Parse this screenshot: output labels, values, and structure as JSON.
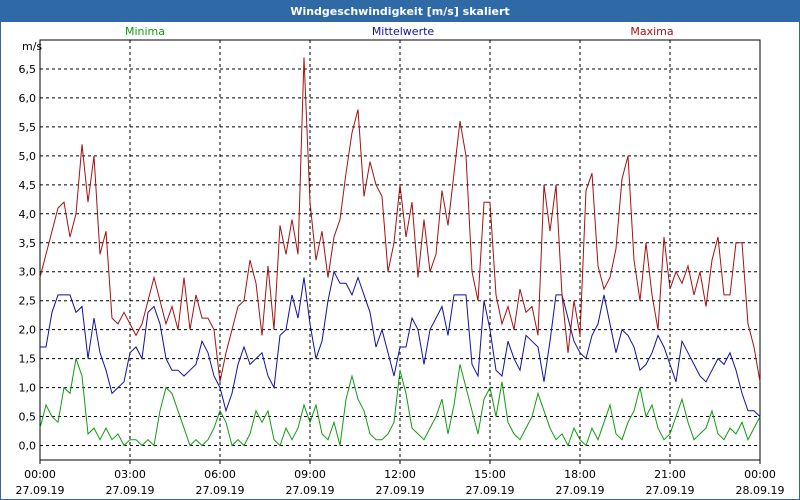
{
  "window": {
    "title": "Windgeschwindigkeit [m/s] skaliert"
  },
  "chart_data": {
    "type": "line",
    "title": "Windgeschwindigkeit [m/s] skaliert",
    "ylabel": "m/s",
    "xlabel": "",
    "ylim": [
      -0.25,
      7.0
    ],
    "xlim": [
      0,
      24
    ],
    "grid": true,
    "legend_position": "top",
    "yticks": [
      {
        "v": 0.0,
        "label": "0,0"
      },
      {
        "v": 0.5,
        "label": "0,5"
      },
      {
        "v": 1.0,
        "label": "1,0"
      },
      {
        "v": 1.5,
        "label": "1,5"
      },
      {
        "v": 2.0,
        "label": "2,0"
      },
      {
        "v": 2.5,
        "label": "2,5"
      },
      {
        "v": 3.0,
        "label": "3,0"
      },
      {
        "v": 3.5,
        "label": "3,5"
      },
      {
        "v": 4.0,
        "label": "4,0"
      },
      {
        "v": 4.5,
        "label": "4,5"
      },
      {
        "v": 5.0,
        "label": "5,0"
      },
      {
        "v": 5.5,
        "label": "5,5"
      },
      {
        "v": 6.0,
        "label": "6,0"
      },
      {
        "v": 6.5,
        "label": "6,5"
      }
    ],
    "xticks": [
      {
        "v": 0,
        "time": "00:00",
        "date": "27.09.19"
      },
      {
        "v": 3,
        "time": "03:00",
        "date": "27.09.19"
      },
      {
        "v": 6,
        "time": "06:00",
        "date": "27.09.19"
      },
      {
        "v": 9,
        "time": "09:00",
        "date": "27.09.19"
      },
      {
        "v": 12,
        "time": "12:00",
        "date": "27.09.19"
      },
      {
        "v": 15,
        "time": "15:00",
        "date": "27.09.19"
      },
      {
        "v": 18,
        "time": "18:00",
        "date": "27.09.19"
      },
      {
        "v": 21,
        "time": "21:00",
        "date": "27.09.19"
      },
      {
        "v": 24,
        "time": "00:00",
        "date": "28.09.19"
      }
    ],
    "series": [
      {
        "name": "Minima",
        "color": "#109c10",
        "x": [
          0,
          0.2,
          0.4,
          0.6,
          0.8,
          1.0,
          1.2,
          1.4,
          1.6,
          1.8,
          2.0,
          2.2,
          2.4,
          2.6,
          2.8,
          3.0,
          3.2,
          3.4,
          3.6,
          3.8,
          4.0,
          4.2,
          4.4,
          4.6,
          4.8,
          5.0,
          5.2,
          5.4,
          5.6,
          5.8,
          6.0,
          6.2,
          6.4,
          6.6,
          6.8,
          7.0,
          7.2,
          7.4,
          7.6,
          7.8,
          8.0,
          8.2,
          8.4,
          8.6,
          8.8,
          9.0,
          9.2,
          9.4,
          9.6,
          9.8,
          10.0,
          10.2,
          10.4,
          10.6,
          10.8,
          11.0,
          11.2,
          11.4,
          11.6,
          11.8,
          12.0,
          12.2,
          12.4,
          12.6,
          12.8,
          13.0,
          13.2,
          13.4,
          13.6,
          13.8,
          14.0,
          14.2,
          14.4,
          14.6,
          14.8,
          15.0,
          15.2,
          15.4,
          15.6,
          15.8,
          16.0,
          16.2,
          16.4,
          16.6,
          16.8,
          17.0,
          17.2,
          17.4,
          17.6,
          17.8,
          18.0,
          18.2,
          18.4,
          18.6,
          18.8,
          19.0,
          19.2,
          19.4,
          19.6,
          19.8,
          20.0,
          20.2,
          20.4,
          20.6,
          20.8,
          21.0,
          21.2,
          21.4,
          21.6,
          21.8,
          22.0,
          22.2,
          22.4,
          22.6,
          22.8,
          23.0,
          23.2,
          23.4,
          23.6,
          23.8,
          24.0
        ],
        "values": [
          0.3,
          0.7,
          0.5,
          0.4,
          1.0,
          0.9,
          1.5,
          1.2,
          0.2,
          0.3,
          0.1,
          0.3,
          0.1,
          0.2,
          0.0,
          0.1,
          0.1,
          0.0,
          0.1,
          0.0,
          0.6,
          1.0,
          0.9,
          0.6,
          0.3,
          0.0,
          0.1,
          0.0,
          0.1,
          0.3,
          0.6,
          0.4,
          0.0,
          0.1,
          0.0,
          0.2,
          0.6,
          0.4,
          0.6,
          0.1,
          0.0,
          0.3,
          0.1,
          0.3,
          0.7,
          0.4,
          0.7,
          0.2,
          0.1,
          0.4,
          0.0,
          0.8,
          1.2,
          0.8,
          0.6,
          0.2,
          0.1,
          0.1,
          0.2,
          0.4,
          1.3,
          0.9,
          0.3,
          0.2,
          0.1,
          0.3,
          0.5,
          0.8,
          0.2,
          0.7,
          1.4,
          1.0,
          0.6,
          0.2,
          0.8,
          1.0,
          0.5,
          1.1,
          0.4,
          0.2,
          0.1,
          0.3,
          0.5,
          0.9,
          0.6,
          0.3,
          0.1,
          0.2,
          0.0,
          0.3,
          0.1,
          0.0,
          0.3,
          0.1,
          0.4,
          0.7,
          0.2,
          0.1,
          0.4,
          0.6,
          1.0,
          0.5,
          0.7,
          0.3,
          0.1,
          0.2,
          0.5,
          0.8,
          0.4,
          0.1,
          0.2,
          0.3,
          0.6,
          0.2,
          0.1,
          0.3,
          0.2,
          0.4,
          0.1,
          0.3,
          0.5
        ]
      },
      {
        "name": "Mittelwerte",
        "color": "#1010a8",
        "x": [
          0,
          0.2,
          0.4,
          0.6,
          0.8,
          1.0,
          1.2,
          1.4,
          1.6,
          1.8,
          2.0,
          2.2,
          2.4,
          2.6,
          2.8,
          3.0,
          3.2,
          3.4,
          3.6,
          3.8,
          4.0,
          4.2,
          4.4,
          4.6,
          4.8,
          5.0,
          5.2,
          5.4,
          5.6,
          5.8,
          6.0,
          6.2,
          6.4,
          6.6,
          6.8,
          7.0,
          7.2,
          7.4,
          7.6,
          7.8,
          8.0,
          8.2,
          8.4,
          8.6,
          8.8,
          9.0,
          9.2,
          9.4,
          9.6,
          9.8,
          10.0,
          10.2,
          10.4,
          10.6,
          10.8,
          11.0,
          11.2,
          11.4,
          11.6,
          11.8,
          12.0,
          12.2,
          12.4,
          12.6,
          12.8,
          13.0,
          13.2,
          13.4,
          13.6,
          13.8,
          14.0,
          14.2,
          14.4,
          14.6,
          14.8,
          15.0,
          15.2,
          15.4,
          15.6,
          15.8,
          16.0,
          16.2,
          16.4,
          16.6,
          16.8,
          17.0,
          17.2,
          17.4,
          17.6,
          17.8,
          18.0,
          18.2,
          18.4,
          18.6,
          18.8,
          19.0,
          19.2,
          19.4,
          19.6,
          19.8,
          20.0,
          20.2,
          20.4,
          20.6,
          20.8,
          21.0,
          21.2,
          21.4,
          21.6,
          21.8,
          22.0,
          22.2,
          22.4,
          22.6,
          22.8,
          23.0,
          23.2,
          23.4,
          23.6,
          23.8,
          24.0
        ],
        "values": [
          1.7,
          1.7,
          2.3,
          2.6,
          2.6,
          2.6,
          2.3,
          2.4,
          1.5,
          2.2,
          1.6,
          1.3,
          0.9,
          1.0,
          1.1,
          1.6,
          1.7,
          1.5,
          2.3,
          2.4,
          2.1,
          1.5,
          1.3,
          1.3,
          1.2,
          1.3,
          1.4,
          1.8,
          1.6,
          1.2,
          1.0,
          0.6,
          0.9,
          1.4,
          1.7,
          1.4,
          1.5,
          1.6,
          1.2,
          1.0,
          1.9,
          2.0,
          2.6,
          2.2,
          2.9,
          2.1,
          1.5,
          1.8,
          2.5,
          3.0,
          2.8,
          2.8,
          2.6,
          2.9,
          2.6,
          2.3,
          1.7,
          2.0,
          1.6,
          1.2,
          1.7,
          1.7,
          2.2,
          2.0,
          1.4,
          2.0,
          2.2,
          2.4,
          1.9,
          2.6,
          2.6,
          2.6,
          1.4,
          1.2,
          2.5,
          2.0,
          1.3,
          1.2,
          1.8,
          1.5,
          1.3,
          1.9,
          1.8,
          1.7,
          1.1,
          1.8,
          2.6,
          2.6,
          2.2,
          1.8,
          1.6,
          1.5,
          1.9,
          2.1,
          2.6,
          2.1,
          1.6,
          2.0,
          1.9,
          1.7,
          1.3,
          1.4,
          1.6,
          1.9,
          1.7,
          1.4,
          1.1,
          1.8,
          1.6,
          1.4,
          1.2,
          1.1,
          1.3,
          1.5,
          1.4,
          1.6,
          1.3,
          0.9,
          0.6,
          0.6,
          0.5
        ]
      },
      {
        "name": "Maxima",
        "color": "#a81010",
        "x": [
          0,
          0.2,
          0.4,
          0.6,
          0.8,
          1.0,
          1.2,
          1.4,
          1.6,
          1.8,
          2.0,
          2.2,
          2.4,
          2.6,
          2.8,
          3.0,
          3.2,
          3.4,
          3.6,
          3.8,
          4.0,
          4.2,
          4.4,
          4.6,
          4.8,
          5.0,
          5.2,
          5.4,
          5.6,
          5.8,
          6.0,
          6.2,
          6.4,
          6.6,
          6.8,
          7.0,
          7.2,
          7.4,
          7.6,
          7.8,
          8.0,
          8.2,
          8.4,
          8.6,
          8.8,
          9.0,
          9.2,
          9.4,
          9.6,
          9.8,
          10.0,
          10.2,
          10.4,
          10.6,
          10.8,
          11.0,
          11.2,
          11.4,
          11.6,
          11.8,
          12.0,
          12.2,
          12.4,
          12.6,
          12.8,
          13.0,
          13.2,
          13.4,
          13.6,
          13.8,
          14.0,
          14.2,
          14.4,
          14.6,
          14.8,
          15.0,
          15.2,
          15.4,
          15.6,
          15.8,
          16.0,
          16.2,
          16.4,
          16.6,
          16.8,
          17.0,
          17.2,
          17.4,
          17.6,
          17.8,
          18.0,
          18.2,
          18.4,
          18.6,
          18.8,
          19.0,
          19.2,
          19.4,
          19.6,
          19.8,
          20.0,
          20.2,
          20.4,
          20.6,
          20.8,
          21.0,
          21.2,
          21.4,
          21.6,
          21.8,
          22.0,
          22.2,
          22.4,
          22.6,
          22.8,
          23.0,
          23.2,
          23.4,
          23.6,
          23.8,
          24.0
        ],
        "values": [
          2.9,
          3.3,
          3.7,
          4.1,
          4.2,
          3.6,
          4.0,
          5.2,
          4.2,
          5.0,
          3.3,
          3.7,
          2.2,
          2.1,
          2.3,
          2.1,
          1.9,
          2.1,
          2.5,
          2.9,
          2.5,
          2.1,
          2.4,
          2.0,
          2.9,
          2.0,
          2.6,
          2.2,
          2.2,
          2.0,
          1.1,
          1.6,
          2.0,
          2.4,
          2.5,
          3.2,
          2.8,
          1.9,
          3.1,
          2.0,
          3.8,
          3.3,
          3.9,
          3.3,
          6.7,
          4.2,
          3.2,
          3.7,
          2.9,
          3.6,
          3.9,
          4.7,
          5.4,
          5.8,
          4.3,
          4.9,
          4.5,
          4.3,
          3.0,
          3.5,
          4.5,
          3.6,
          4.2,
          2.9,
          3.9,
          3.0,
          3.3,
          4.4,
          3.8,
          4.7,
          5.6,
          5.0,
          3.0,
          2.5,
          4.2,
          4.2,
          2.6,
          2.1,
          2.4,
          2.0,
          2.7,
          2.3,
          2.4,
          1.9,
          4.5,
          3.7,
          4.5,
          2.6,
          1.6,
          2.5,
          1.9,
          4.4,
          4.7,
          3.1,
          2.7,
          2.9,
          3.4,
          4.6,
          5.0,
          3.2,
          2.5,
          3.5,
          2.6,
          2.0,
          3.6,
          2.7,
          3.0,
          2.8,
          3.1,
          2.6,
          3.0,
          2.4,
          3.2,
          3.6,
          2.6,
          2.6,
          3.5,
          3.5,
          2.1,
          1.7,
          1.1
        ]
      }
    ]
  }
}
